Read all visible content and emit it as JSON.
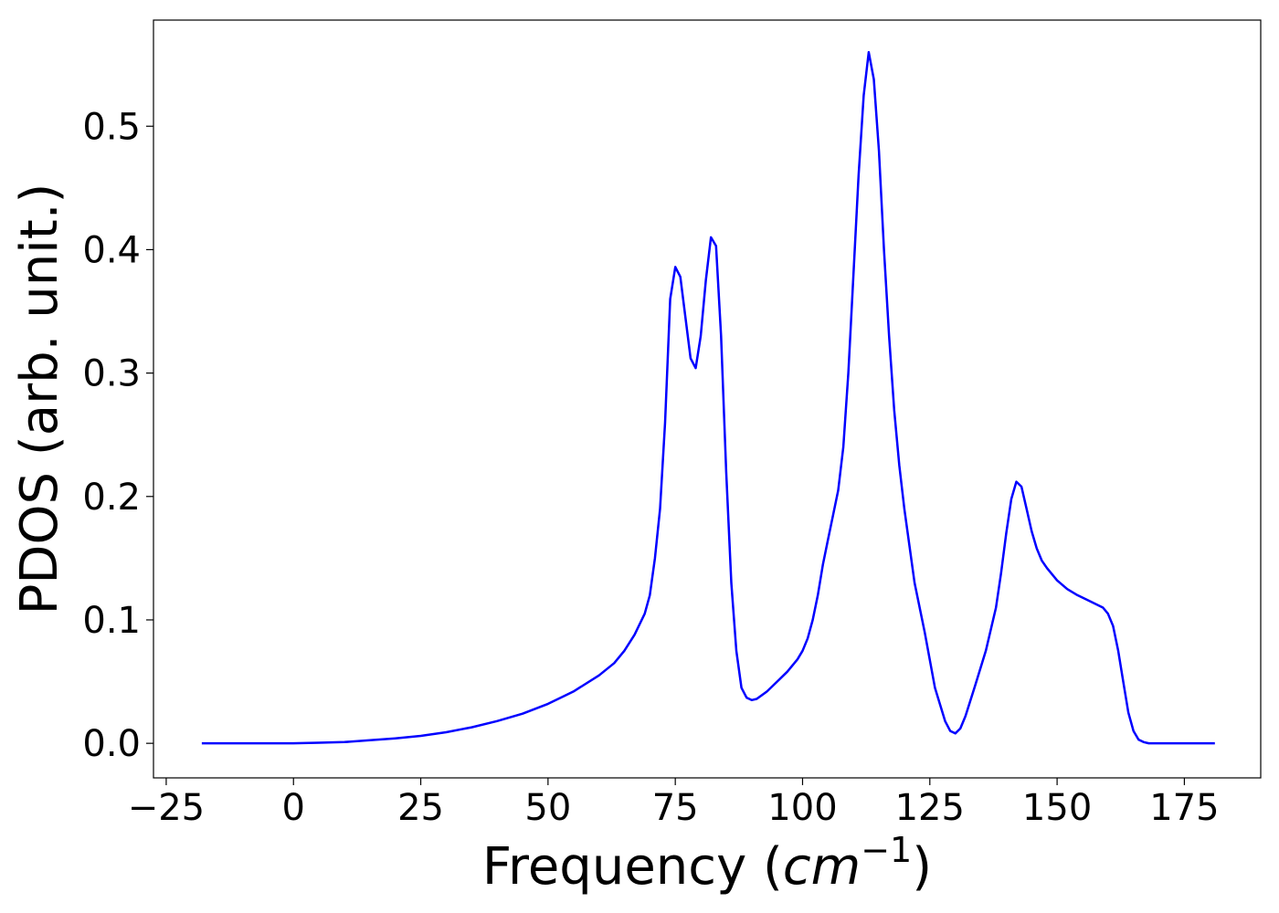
{
  "chart_data": {
    "type": "line",
    "title": "",
    "xlabel": "Frequency (",
    "xlabel_math": "cm",
    "xlabel_sup": "−1",
    "xlabel_end": ")",
    "ylabel": "PDOS (arb. unit.)",
    "xlim": [
      -27.5,
      190
    ],
    "ylim": [
      -0.028,
      0.586
    ],
    "xticks": [
      -25,
      0,
      25,
      50,
      75,
      100,
      125,
      150,
      175
    ],
    "xtick_labels": [
      "−25",
      "0",
      "25",
      "50",
      "75",
      "100",
      "125",
      "150",
      "175"
    ],
    "yticks": [
      0.0,
      0.1,
      0.2,
      0.3,
      0.4,
      0.5
    ],
    "ytick_labels": [
      "0.0",
      "0.1",
      "0.2",
      "0.3",
      "0.4",
      "0.5"
    ],
    "grid": false,
    "series": [
      {
        "color": "#0000ff",
        "x": [
          -18,
          -10,
          0,
          5,
          10,
          15,
          20,
          25,
          30,
          35,
          40,
          45,
          50,
          55,
          60,
          63,
          65,
          67,
          69,
          70,
          71,
          72,
          73,
          74,
          75,
          76,
          77,
          78,
          79,
          80,
          81,
          82,
          83,
          84,
          85,
          86,
          87,
          88,
          89,
          90,
          91,
          93,
          95,
          97,
          99,
          100,
          101,
          102,
          103,
          104,
          105,
          106,
          107,
          108,
          109,
          110,
          111,
          112,
          113,
          114,
          115,
          116,
          117,
          118,
          119,
          120,
          122,
          124,
          126,
          128,
          129,
          130,
          131,
          132,
          134,
          136,
          138,
          139,
          140,
          141,
          142,
          143,
          144,
          145,
          146,
          147,
          148,
          150,
          152,
          154,
          156,
          158,
          159,
          160,
          161,
          162,
          163,
          164,
          165,
          166,
          167,
          168,
          170,
          175,
          181
        ],
        "y": [
          0.0,
          0.0,
          0.0,
          0.0005,
          0.001,
          0.0025,
          0.004,
          0.006,
          0.009,
          0.013,
          0.018,
          0.024,
          0.032,
          0.042,
          0.055,
          0.065,
          0.075,
          0.088,
          0.105,
          0.12,
          0.15,
          0.19,
          0.26,
          0.36,
          0.386,
          0.378,
          0.345,
          0.312,
          0.304,
          0.33,
          0.375,
          0.41,
          0.403,
          0.33,
          0.22,
          0.13,
          0.075,
          0.045,
          0.037,
          0.035,
          0.036,
          0.042,
          0.05,
          0.058,
          0.068,
          0.075,
          0.085,
          0.1,
          0.12,
          0.145,
          0.165,
          0.185,
          0.205,
          0.24,
          0.3,
          0.38,
          0.46,
          0.525,
          0.56,
          0.538,
          0.48,
          0.4,
          0.33,
          0.27,
          0.225,
          0.19,
          0.13,
          0.09,
          0.045,
          0.018,
          0.01,
          0.008,
          0.012,
          0.022,
          0.048,
          0.075,
          0.11,
          0.138,
          0.17,
          0.198,
          0.212,
          0.208,
          0.19,
          0.172,
          0.158,
          0.148,
          0.142,
          0.132,
          0.125,
          0.12,
          0.116,
          0.112,
          0.11,
          0.105,
          0.095,
          0.075,
          0.05,
          0.025,
          0.01,
          0.003,
          0.001,
          0.0,
          0.0,
          0.0,
          0.0
        ]
      }
    ]
  }
}
